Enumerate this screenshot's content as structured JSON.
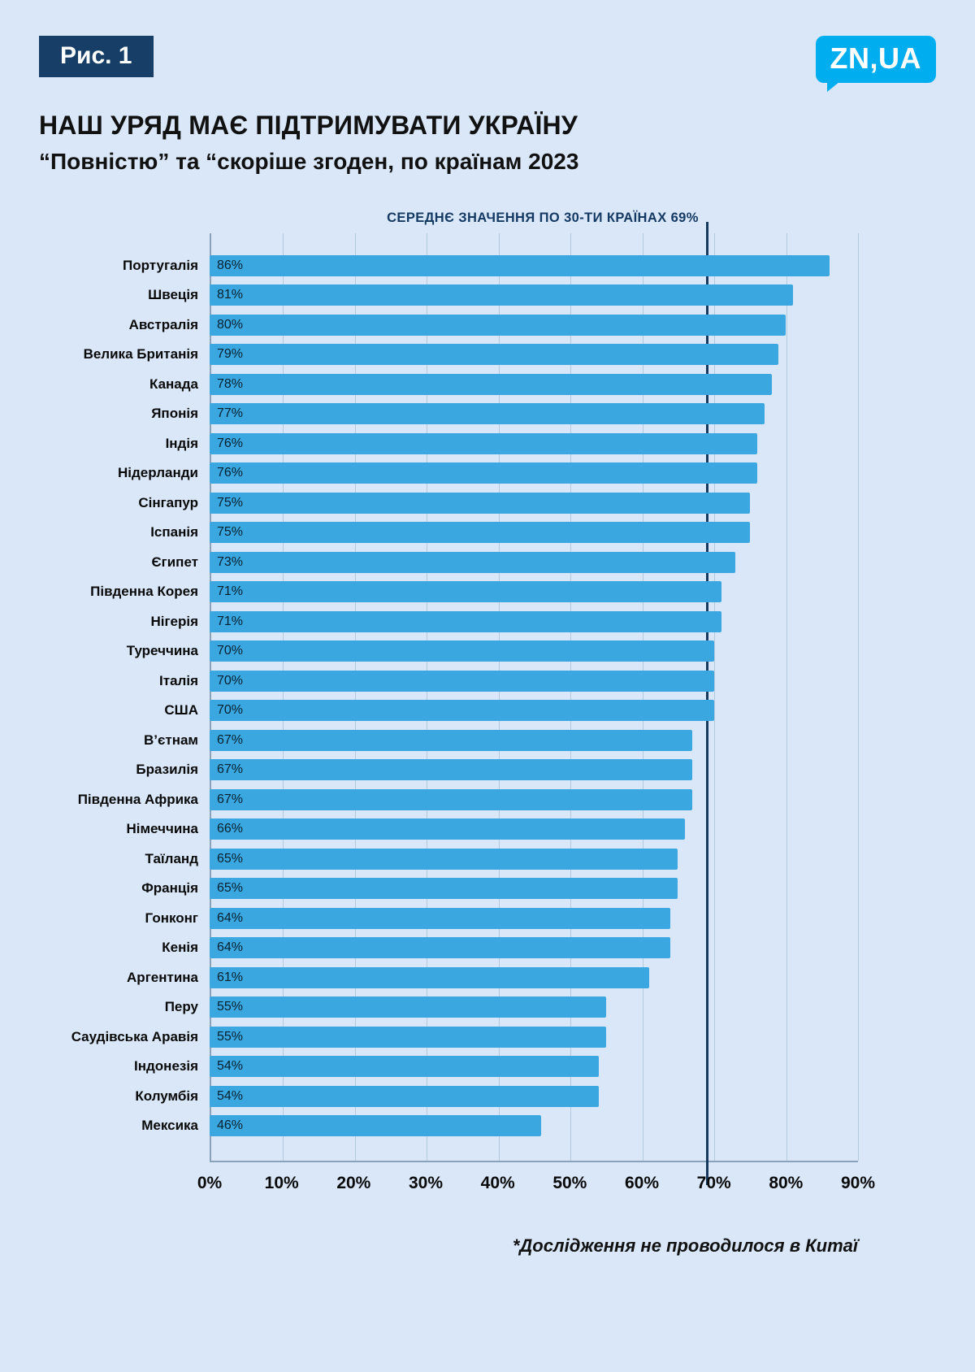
{
  "figure_badge": "Рис. 1",
  "logo_text": "ZN,UA",
  "title": "НАШ УРЯД МАЄ ПІДТРИМУВАТИ УКРАЇНУ",
  "subtitle": "“Повністю” та “скоріше згоден, по країнам 2023",
  "average_label": "СЕРЕДНЄ ЗНАЧЕННЯ ПО 30-ТИ КРАЇНАХ 69%",
  "footnote": "*Дослідження не проводилося в Китаї",
  "colors": {
    "page_bg": "#d9e7f8",
    "badge_bg": "#163e66",
    "logo_bg": "#00aeef",
    "bar": "#3aa7e1",
    "average_line": "#16395f",
    "average_text": "#143a63",
    "grid": "#b3c9de",
    "axis": "#8aa2ba",
    "text": "#0c0c0c"
  },
  "chart_data": {
    "type": "bar",
    "orientation": "horizontal",
    "title": "НАШ УРЯД МАЄ ПІДТРИМУВАТИ УКРАЇНУ — “Повністю” та “скоріше згоден, по країнам 2023",
    "categories": [
      "Португалія",
      "Швеція",
      "Австралія",
      "Велика Британія",
      "Канада",
      "Японія",
      "Індія",
      "Нідерланди",
      "Сінгапур",
      "Іспанія",
      "Єгипет",
      "Південна Корея",
      "Нігерія",
      "Туреччина",
      "Італія",
      "США",
      "В’єтнам",
      "Бразилія",
      "Південна Африка",
      "Німеччина",
      "Таїланд",
      "Франція",
      "Гонконг",
      "Кенія",
      "Аргентина",
      "Перу",
      "Саудівська Аравія",
      "Індонезія",
      "Колумбія",
      "Мексика"
    ],
    "values": [
      86,
      81,
      80,
      79,
      78,
      77,
      76,
      76,
      75,
      75,
      73,
      71,
      71,
      70,
      70,
      70,
      67,
      67,
      67,
      66,
      65,
      65,
      64,
      64,
      61,
      55,
      55,
      54,
      54,
      46
    ],
    "value_suffix": "%",
    "xlim": [
      0,
      90
    ],
    "xticks": [
      0,
      10,
      20,
      30,
      40,
      50,
      60,
      70,
      80,
      90
    ],
    "xtick_labels": [
      "0%",
      "10%",
      "20%",
      "30%",
      "40%",
      "50%",
      "60%",
      "70%",
      "80%",
      "90%"
    ],
    "average": 69,
    "average_label": "СЕРЕДНЄ ЗНАЧЕННЯ ПО 30-ТИ КРАЇНАХ 69%",
    "grid": "vertical",
    "legend": null
  }
}
